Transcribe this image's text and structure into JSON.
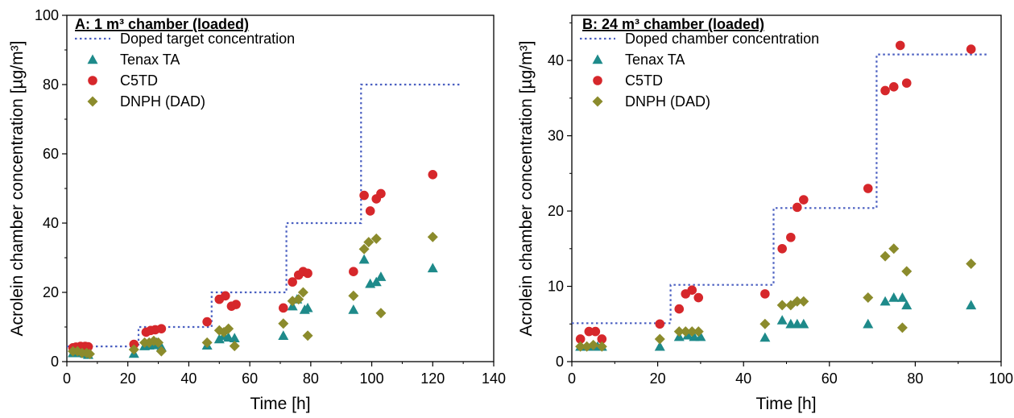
{
  "chart_data": [
    {
      "type": "scatter",
      "title": "A: 1 m³ chamber (loaded)",
      "xlabel": "Time [h]",
      "ylabel": "Acrolein chamber concentration [µg/m³]",
      "xlim": [
        0,
        140
      ],
      "ylim": [
        0,
        100
      ],
      "x_ticks": [
        "0",
        "20",
        "40",
        "60",
        "80",
        "100",
        "120",
        "140"
      ],
      "y_ticks": [
        "0",
        "20",
        "40",
        "60",
        "80",
        "100"
      ],
      "legend_position": "top-left",
      "step_line": {
        "name": "Doped target concentration",
        "color": "#4a5fc1",
        "points": [
          [
            0,
            4.4
          ],
          [
            23.5,
            4.4
          ],
          [
            23.5,
            10
          ],
          [
            47.5,
            10
          ],
          [
            47.5,
            20
          ],
          [
            72,
            20
          ],
          [
            72,
            40
          ],
          [
            96.5,
            40
          ],
          [
            96.5,
            80
          ],
          [
            129,
            80
          ]
        ]
      },
      "series": [
        {
          "name": "Tenax TA",
          "marker": "triangle",
          "color": "#1e8a8a",
          "points": [
            [
              2,
              2.5
            ],
            [
              3.5,
              2.5
            ],
            [
              5,
              2.5
            ],
            [
              6,
              2.3
            ],
            [
              7,
              2.0
            ],
            [
              22,
              2.3
            ],
            [
              25.5,
              4.5
            ],
            [
              27,
              4.7
            ],
            [
              28.5,
              4.8
            ],
            [
              29.5,
              5.5
            ],
            [
              31,
              4.2
            ],
            [
              46,
              4.7
            ],
            [
              50,
              6.5
            ],
            [
              51.5,
              7.5
            ],
            [
              53,
              7.0
            ],
            [
              55,
              6.8
            ],
            [
              71,
              7.5
            ],
            [
              74,
              16.0
            ],
            [
              75.5,
              18.0
            ],
            [
              78,
              15.0
            ],
            [
              79,
              15.5
            ],
            [
              94,
              15.0
            ],
            [
              97.5,
              29.5
            ],
            [
              99.5,
              22.5
            ],
            [
              101.5,
              23.0
            ],
            [
              103,
              24.5
            ],
            [
              120,
              27.0
            ]
          ]
        },
        {
          "name": "C5TD",
          "marker": "circle",
          "color": "#d6272b",
          "points": [
            [
              2,
              4.0
            ],
            [
              3,
              4.2
            ],
            [
              4.5,
              4.4
            ],
            [
              6,
              4.4
            ],
            [
              7,
              4.3
            ],
            [
              22,
              5.0
            ],
            [
              26,
              8.5
            ],
            [
              27.5,
              9.0
            ],
            [
              29,
              9.2
            ],
            [
              31,
              9.5
            ],
            [
              46,
              11.5
            ],
            [
              50,
              18.0
            ],
            [
              52,
              19.0
            ],
            [
              54,
              16.0
            ],
            [
              55.5,
              16.5
            ],
            [
              71,
              15.5
            ],
            [
              74,
              23.0
            ],
            [
              76,
              25.0
            ],
            [
              77.5,
              26.0
            ],
            [
              79,
              25.5
            ],
            [
              94,
              26.0
            ],
            [
              97.5,
              48.0
            ],
            [
              99.5,
              43.5
            ],
            [
              101.5,
              47.0
            ],
            [
              103,
              48.5
            ],
            [
              120,
              54.0
            ]
          ]
        },
        {
          "name": "DNPH (DAD)",
          "marker": "diamond",
          "color": "#8b8b2c",
          "points": [
            [
              2,
              3.0
            ],
            [
              3.5,
              3.0
            ],
            [
              5,
              2.5
            ],
            [
              6.5,
              2.5
            ],
            [
              7.5,
              2.2
            ],
            [
              22,
              3.5
            ],
            [
              25.5,
              5.5
            ],
            [
              27,
              5.5
            ],
            [
              28.5,
              6.0
            ],
            [
              30,
              5.5
            ],
            [
              31,
              3.0
            ],
            [
              46,
              5.5
            ],
            [
              50,
              9.0
            ],
            [
              51.5,
              8.5
            ],
            [
              53,
              9.5
            ],
            [
              55,
              4.5
            ],
            [
              71,
              11.0
            ],
            [
              74,
              17.5
            ],
            [
              76,
              18.0
            ],
            [
              77.5,
              20.0
            ],
            [
              79,
              7.5
            ],
            [
              94,
              19.0
            ],
            [
              97.5,
              32.5
            ],
            [
              99,
              34.5
            ],
            [
              101.5,
              35.5
            ],
            [
              103,
              14.0
            ],
            [
              120,
              36.0
            ]
          ]
        }
      ]
    },
    {
      "type": "scatter",
      "title": "B: 24 m³ chamber (loaded)",
      "xlabel": "Time [h]",
      "ylabel": "Acrolein chamber concentration [µg/m³]",
      "xlim": [
        0,
        100
      ],
      "ylim": [
        0,
        46
      ],
      "x_ticks": [
        "0",
        "20",
        "40",
        "60",
        "80",
        "100"
      ],
      "y_ticks": [
        "0",
        "10",
        "20",
        "30",
        "40"
      ],
      "legend_position": "top-left",
      "step_line": {
        "name": "Doped chamber concentration",
        "color": "#4a5fc1",
        "points": [
          [
            0,
            5.1
          ],
          [
            23,
            5.1
          ],
          [
            23,
            10.2
          ],
          [
            47,
            10.2
          ],
          [
            47,
            20.4
          ],
          [
            71,
            20.4
          ],
          [
            71,
            40.8
          ],
          [
            97,
            40.8
          ]
        ]
      },
      "series": [
        {
          "name": "Tenax TA",
          "marker": "triangle",
          "color": "#1e8a8a",
          "points": [
            [
              2,
              2.0
            ],
            [
              3.5,
              2.0
            ],
            [
              5,
              2.0
            ],
            [
              6,
              2.0
            ],
            [
              7,
              2.0
            ],
            [
              20.5,
              2.0
            ],
            [
              25,
              3.3
            ],
            [
              27,
              3.5
            ],
            [
              28.5,
              3.3
            ],
            [
              30,
              3.3
            ],
            [
              45,
              3.2
            ],
            [
              49,
              5.5
            ],
            [
              51,
              5.0
            ],
            [
              52.5,
              5.0
            ],
            [
              54,
              5.0
            ],
            [
              69,
              5.0
            ],
            [
              73,
              8.0
            ],
            [
              75,
              8.5
            ],
            [
              77,
              8.5
            ],
            [
              78,
              7.5
            ],
            [
              93,
              7.5
            ]
          ]
        },
        {
          "name": "C5TD",
          "marker": "circle",
          "color": "#d6272b",
          "points": [
            [
              2,
              3.0
            ],
            [
              4,
              4.0
            ],
            [
              5.5,
              4.0
            ],
            [
              7,
              3.0
            ],
            [
              20.5,
              5.0
            ],
            [
              25,
              7.0
            ],
            [
              26.5,
              9.0
            ],
            [
              28,
              9.5
            ],
            [
              29.5,
              8.5
            ],
            [
              45,
              9.0
            ],
            [
              49,
              15.0
            ],
            [
              51,
              16.5
            ],
            [
              52.5,
              20.5
            ],
            [
              54,
              21.5
            ],
            [
              69,
              23.0
            ],
            [
              73,
              36.0
            ],
            [
              75,
              36.5
            ],
            [
              76.5,
              42.0
            ],
            [
              78,
              37.0
            ],
            [
              93,
              41.5
            ]
          ]
        },
        {
          "name": "DNPH (DAD)",
          "marker": "diamond",
          "color": "#8b8b2c",
          "points": [
            [
              2,
              2.0
            ],
            [
              3.5,
              2.0
            ],
            [
              5,
              2.2
            ],
            [
              7,
              2.0
            ],
            [
              20.5,
              3.0
            ],
            [
              25,
              4.0
            ],
            [
              26.5,
              4.0
            ],
            [
              28,
              4.0
            ],
            [
              29.5,
              4.0
            ],
            [
              45,
              5.0
            ],
            [
              49,
              7.5
            ],
            [
              51,
              7.5
            ],
            [
              52.5,
              8.0
            ],
            [
              54,
              8.0
            ],
            [
              69,
              8.5
            ],
            [
              73,
              14.0
            ],
            [
              75,
              15.0
            ],
            [
              77,
              4.5
            ],
            [
              78,
              12.0
            ],
            [
              93,
              13.0
            ]
          ]
        }
      ]
    }
  ]
}
